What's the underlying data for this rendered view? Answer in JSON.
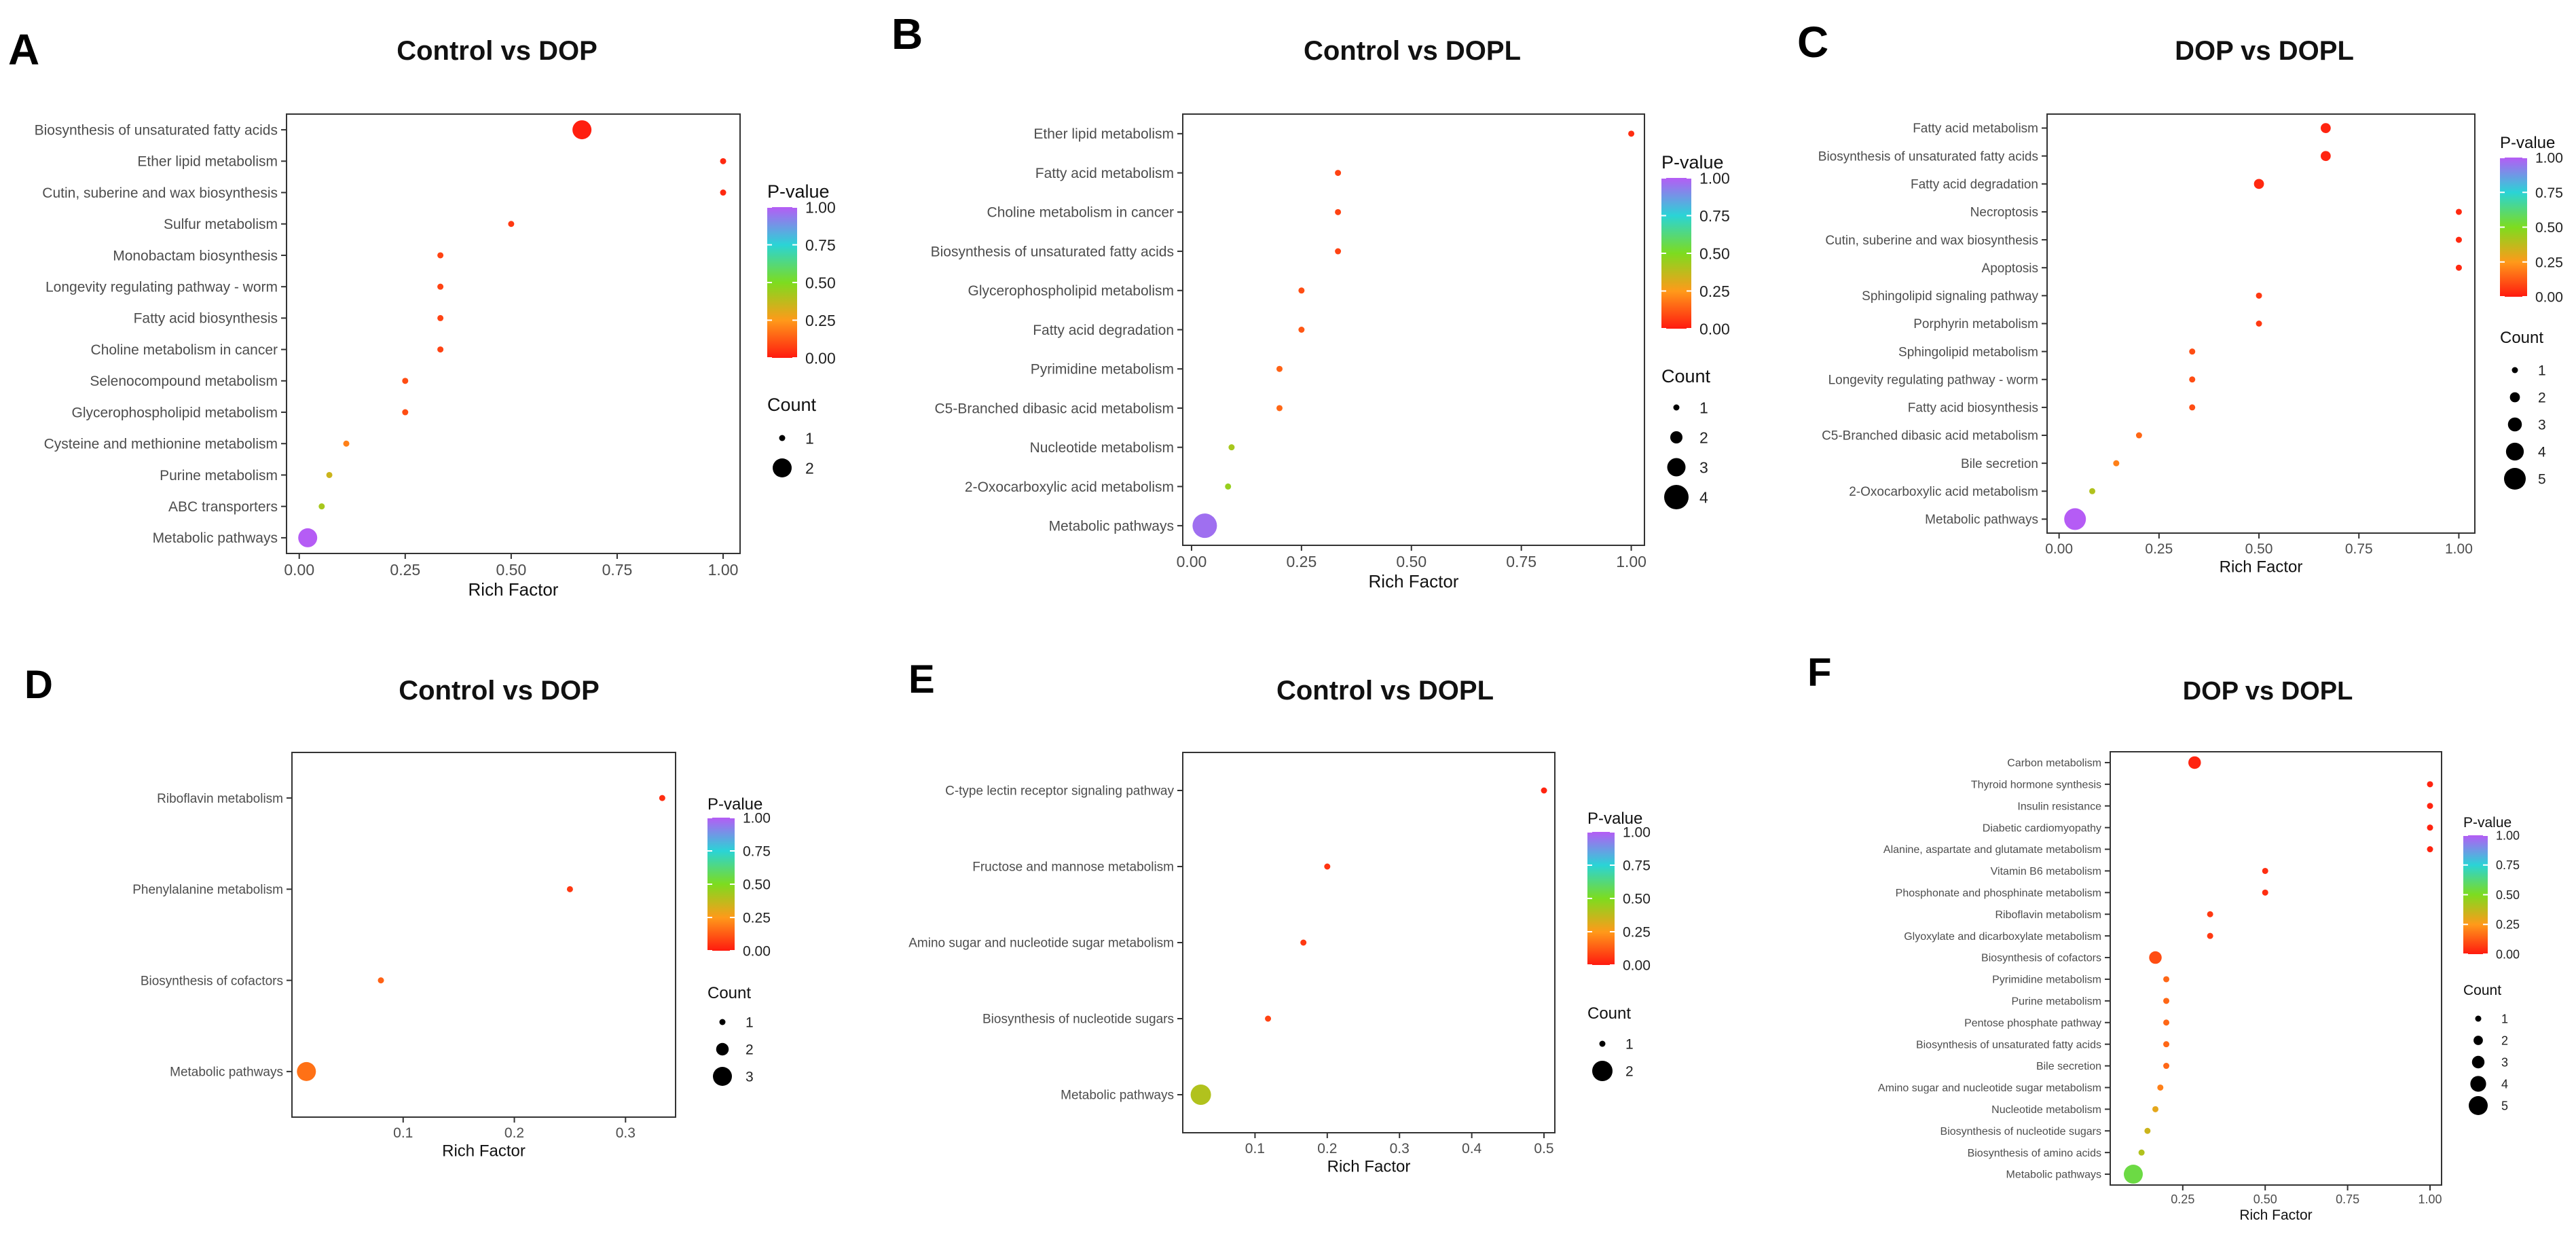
{
  "legend_labels": {
    "pvalue_title": "P-value",
    "count_title": "Count",
    "xlabel": "Rich Factor"
  },
  "colorscale": {
    "low": "#ff1a0f",
    "q1": "#ff9a1a",
    "q2": "#7ddc1f",
    "q3": "#2ad4d6",
    "high": "#b55cf5"
  },
  "chart_data": [
    {
      "letter": "A",
      "type": "scatter",
      "title": "Control vs DOP",
      "xlabel": "Rich Factor",
      "ylabel": "",
      "xlim": [
        -0.03,
        1.04
      ],
      "xticks": [
        "0.00",
        "0.25",
        "0.50",
        "0.75",
        "1.00"
      ],
      "xtick_values": [
        0,
        0.25,
        0.5,
        0.75,
        1.0
      ],
      "pvalue_ticks": [
        "1.00",
        "0.75",
        "0.50",
        "0.25",
        "0.00"
      ],
      "count_levels": [
        "1",
        "2"
      ],
      "count_values": [
        1,
        2
      ],
      "count_max": 2,
      "categories": [
        "Biosynthesis of unsaturated fatty acids",
        "Ether lipid metabolism",
        "Cutin, suberine and wax biosynthesis",
        "Sulfur metabolism",
        "Monobactam biosynthesis",
        "Longevity regulating pathway - worm",
        "Fatty acid biosynthesis",
        "Choline metabolism in cancer",
        "Selenocompound metabolism",
        "Glycerophospholipid metabolism",
        "Cysteine and methionine metabolism",
        "Purine metabolism",
        "ABC transporters",
        "Metabolic pathways"
      ],
      "x": [
        0.667,
        1.0,
        1.0,
        0.5,
        0.333,
        0.333,
        0.333,
        0.333,
        0.25,
        0.25,
        0.111,
        0.071,
        0.053,
        0.02
      ],
      "count": [
        2,
        1,
        1,
        1,
        1,
        1,
        1,
        1,
        1,
        1,
        1,
        1,
        1,
        2
      ],
      "pvalue": [
        0.01,
        0.03,
        0.03,
        0.06,
        0.08,
        0.08,
        0.08,
        0.08,
        0.1,
        0.1,
        0.2,
        0.35,
        0.42,
        1.0
      ]
    },
    {
      "letter": "B",
      "type": "scatter",
      "title": "Control vs DOPL",
      "xlabel": "Rich Factor",
      "ylabel": "",
      "xlim": [
        -0.02,
        1.03
      ],
      "xticks": [
        "0.00",
        "0.25",
        "0.50",
        "0.75",
        "1.00"
      ],
      "xtick_values": [
        0,
        0.25,
        0.5,
        0.75,
        1.0
      ],
      "pvalue_ticks": [
        "1.00",
        "0.75",
        "0.50",
        "0.25",
        "0.00"
      ],
      "count_levels": [
        "1",
        "2",
        "3",
        "4"
      ],
      "count_values": [
        1,
        2,
        3,
        4
      ],
      "count_max": 4,
      "categories": [
        "Ether lipid metabolism",
        "Fatty acid metabolism",
        "Choline metabolism in cancer",
        "Biosynthesis of unsaturated fatty acids",
        "Glycerophospholipid metabolism",
        "Fatty acid degradation",
        "Pyrimidine metabolism",
        "C5-Branched dibasic acid metabolism",
        "Nucleotide metabolism",
        "2-Oxocarboxylic acid metabolism",
        "Metabolic pathways"
      ],
      "x": [
        1.0,
        0.333,
        0.333,
        0.333,
        0.25,
        0.25,
        0.2,
        0.2,
        0.091,
        0.083,
        0.03
      ],
      "count": [
        1,
        1,
        1,
        1,
        1,
        1,
        1,
        1,
        1,
        1,
        4
      ],
      "pvalue": [
        0.04,
        0.08,
        0.08,
        0.08,
        0.1,
        0.12,
        0.14,
        0.15,
        0.42,
        0.45,
        0.96
      ]
    },
    {
      "letter": "C",
      "type": "scatter",
      "title": "DOP vs DOPL",
      "xlabel": "Rich Factor",
      "ylabel": "",
      "xlim": [
        -0.03,
        1.04
      ],
      "xticks": [
        "0.00",
        "0.25",
        "0.50",
        "0.75",
        "1.00"
      ],
      "xtick_values": [
        0,
        0.25,
        0.5,
        0.75,
        1.0
      ],
      "pvalue_ticks": [
        "1.00",
        "0.75",
        "0.50",
        "0.25",
        "0.00"
      ],
      "count_levels": [
        "1",
        "2",
        "3",
        "4",
        "5"
      ],
      "count_values": [
        1,
        2,
        3,
        4,
        5
      ],
      "count_max": 5,
      "categories": [
        "Fatty acid metabolism",
        "Biosynthesis of unsaturated fatty acids",
        "Fatty acid degradation",
        "Necroptosis",
        "Cutin, suberine and wax biosynthesis",
        "Apoptosis",
        "Sphingolipid signaling pathway",
        "Porphyrin metabolism",
        "Sphingolipid metabolism",
        "Longevity regulating pathway - worm",
        "Fatty acid biosynthesis",
        "C5-Branched dibasic acid metabolism",
        "Bile secretion",
        "2-Oxocarboxylic acid metabolism",
        "Metabolic pathways"
      ],
      "x": [
        0.667,
        0.667,
        0.5,
        1.0,
        1.0,
        1.0,
        0.5,
        0.5,
        0.333,
        0.333,
        0.333,
        0.2,
        0.143,
        0.083,
        0.04
      ],
      "count": [
        2,
        2,
        2,
        1,
        1,
        1,
        1,
        1,
        1,
        1,
        1,
        1,
        1,
        1,
        5
      ],
      "pvalue": [
        0.02,
        0.02,
        0.03,
        0.03,
        0.03,
        0.03,
        0.06,
        0.06,
        0.1,
        0.1,
        0.1,
        0.15,
        0.2,
        0.4,
        1.0
      ]
    },
    {
      "letter": "D",
      "type": "scatter",
      "title": "Control vs DOP",
      "xlabel": "Rich Factor",
      "ylabel": "",
      "xlim": [
        0.0,
        0.345
      ],
      "xticks": [
        "0.1",
        "0.2",
        "0.3"
      ],
      "xtick_values": [
        0.1,
        0.2,
        0.3
      ],
      "pvalue_ticks": [
        "1.00",
        "0.75",
        "0.50",
        "0.25",
        "0.00"
      ],
      "count_levels": [
        "1",
        "2",
        "3"
      ],
      "count_values": [
        1,
        2,
        3
      ],
      "count_max": 3,
      "categories": [
        "Riboflavin metabolism",
        "Phenylalanine metabolism",
        "Biosynthesis of cofactors",
        "Metabolic pathways"
      ],
      "x": [
        0.333,
        0.25,
        0.08,
        0.013
      ],
      "count": [
        1,
        1,
        1,
        3
      ],
      "pvalue": [
        0.04,
        0.06,
        0.14,
        0.17
      ]
    },
    {
      "letter": "E",
      "type": "scatter",
      "title": "Control vs DOPL",
      "xlabel": "Rich Factor",
      "ylabel": "",
      "xlim": [
        0.0,
        0.515
      ],
      "xticks": [
        "0.1",
        "0.2",
        "0.3",
        "0.4",
        "0.5"
      ],
      "xtick_values": [
        0.1,
        0.2,
        0.3,
        0.4,
        0.5
      ],
      "pvalue_ticks": [
        "1.00",
        "0.75",
        "0.50",
        "0.25",
        "0.00"
      ],
      "count_levels": [
        "1",
        "2"
      ],
      "count_values": [
        1,
        2
      ],
      "count_max": 2,
      "categories": [
        "C-type lectin receptor signaling pathway",
        "Fructose and mannose metabolism",
        "Amino sugar and nucleotide sugar metabolism",
        "Biosynthesis of nucleotide sugars",
        "Metabolic pathways"
      ],
      "x": [
        0.5,
        0.2,
        0.167,
        0.118,
        0.025
      ],
      "count": [
        1,
        1,
        1,
        1,
        2
      ],
      "pvalue": [
        0.02,
        0.05,
        0.06,
        0.08,
        0.4
      ]
    },
    {
      "letter": "F",
      "type": "scatter",
      "title": "DOP vs DOPL",
      "xlabel": "Rich Factor",
      "ylabel": "",
      "xlim": [
        0.03,
        1.035
      ],
      "xticks": [
        "0.25",
        "0.50",
        "0.75",
        "1.00"
      ],
      "xtick_values": [
        0.25,
        0.5,
        0.75,
        1.0
      ],
      "pvalue_ticks": [
        "1.00",
        "0.75",
        "0.50",
        "0.25",
        "0.00"
      ],
      "count_levels": [
        "1",
        "2",
        "3",
        "4",
        "5"
      ],
      "count_values": [
        1,
        2,
        3,
        4,
        5
      ],
      "count_max": 5,
      "categories": [
        "Carbon metabolism",
        "Thyroid hormone synthesis",
        "Insulin resistance",
        "Diabetic cardiomyopathy",
        "Alanine, aspartate and glutamate metabolism",
        "Vitamin B6 metabolism",
        "Phosphonate and phosphinate metabolism",
        "Riboflavin metabolism",
        "Glyoxylate and dicarboxylate metabolism",
        "Biosynthesis of cofactors",
        "Pyrimidine metabolism",
        "Purine metabolism",
        "Pentose phosphate pathway",
        "Biosynthesis of unsaturated fatty acids",
        "Bile secretion",
        "Amino sugar and nucleotide sugar metabolism",
        "Nucleotide metabolism",
        "Biosynthesis of nucleotide sugars",
        "Biosynthesis of amino acids",
        "Metabolic pathways"
      ],
      "x": [
        0.286,
        1.0,
        1.0,
        1.0,
        1.0,
        0.5,
        0.5,
        0.333,
        0.333,
        0.167,
        0.2,
        0.2,
        0.2,
        0.2,
        0.2,
        0.182,
        0.167,
        0.143,
        0.125,
        0.1
      ],
      "count": [
        3,
        1,
        1,
        1,
        1,
        1,
        1,
        1,
        1,
        3,
        1,
        1,
        1,
        1,
        1,
        1,
        1,
        1,
        1,
        5
      ],
      "pvalue": [
        0.02,
        0.02,
        0.02,
        0.02,
        0.02,
        0.04,
        0.04,
        0.06,
        0.06,
        0.1,
        0.15,
        0.15,
        0.15,
        0.15,
        0.15,
        0.2,
        0.3,
        0.35,
        0.4,
        0.55
      ]
    }
  ]
}
